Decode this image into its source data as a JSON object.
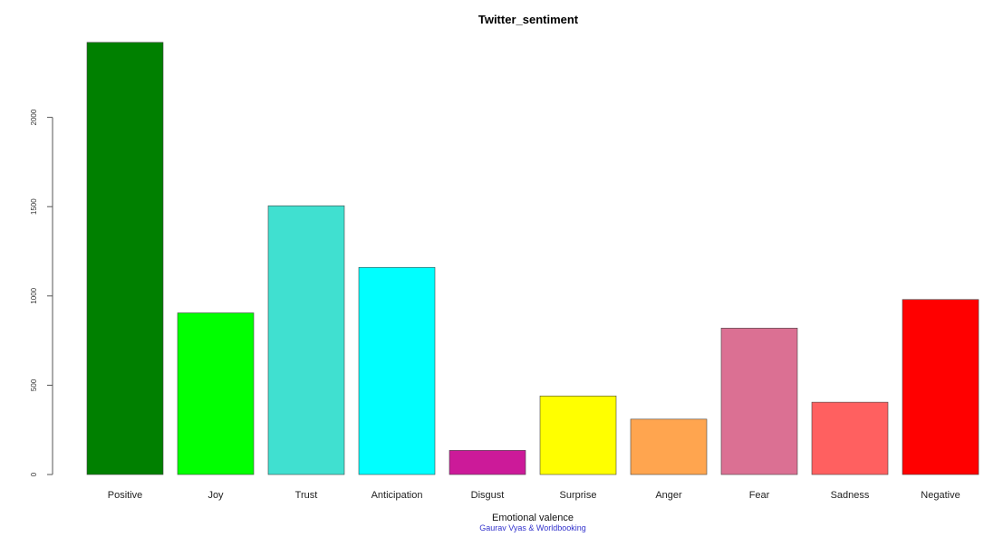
{
  "chart_data": {
    "type": "bar",
    "title": "Twitter_sentiment",
    "xlabel": "Emotional valence",
    "ylabel": "",
    "subcaption": "Gaurav Vyas & Worldbooking",
    "categories": [
      "Positive",
      "Joy",
      "Trust",
      "Anticipation",
      "Disgust",
      "Surprise",
      "Anger",
      "Fear",
      "Sadness",
      "Negative"
    ],
    "values": [
      2420,
      905,
      1505,
      1160,
      135,
      440,
      310,
      820,
      405,
      980
    ],
    "colors": [
      "#008000",
      "#00ff00",
      "#40e0d0",
      "#00ffff",
      "#cc1a99",
      "#ffff00",
      "#ffa54f",
      "#db7093",
      "#ff6060",
      "#ff0000"
    ],
    "ylim": [
      0,
      2500
    ],
    "yticks": [
      0,
      500,
      1000,
      1500,
      2000
    ],
    "ytick_labels": [
      "0",
      "500",
      "1000",
      "1500",
      "2000"
    ],
    "grid": false,
    "legend": "none"
  }
}
